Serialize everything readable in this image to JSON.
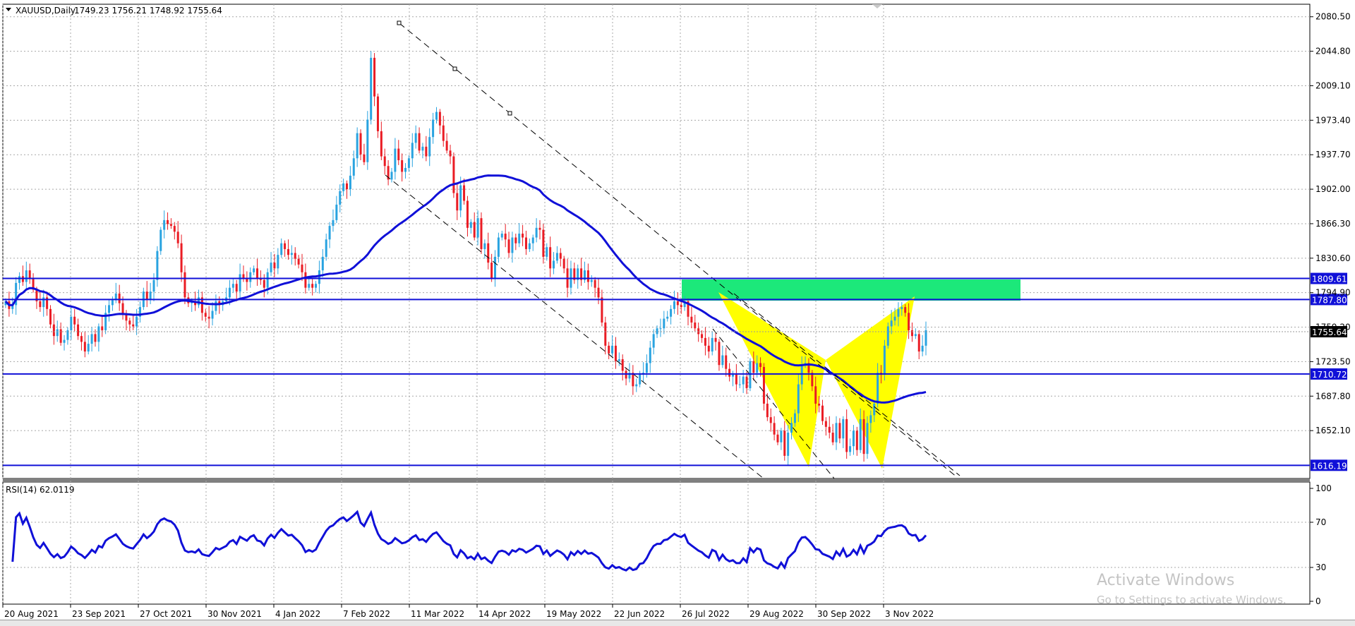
{
  "header": {
    "symbol": "XAUUSD,Daily",
    "ohlc": "1749.23 1756.21 1748.92 1755.64"
  },
  "watermark": {
    "line1": "Activate Windows",
    "line2": "Go to Settings to activate Windows."
  },
  "colors": {
    "bull": "#29a3e0",
    "bear": "#ea1c24",
    "ma": "#1010d8",
    "hline": "#1010d8",
    "zone": "#1ce87a",
    "pattern": "#ffff00"
  },
  "chart_data": [
    {
      "type": "candlestick",
      "title": "XAUUSD,Daily",
      "x_tick_labels": [
        "20 Aug 2021",
        "23 Sep 2021",
        "27 Oct 2021",
        "30 Nov 2021",
        "4 Jan 2022",
        "7 Feb 2022",
        "11 Mar 2022",
        "14 Apr 2022",
        "19 May 2022",
        "22 Jun 2022",
        "26 Jul 2022",
        "29 Aug 2022",
        "30 Sep 2022",
        "3 Nov 2022"
      ],
      "y_tick_labels": [
        "2080.50",
        "2044.80",
        "2009.10",
        "1973.40",
        "1937.70",
        "1902.00",
        "1866.30",
        "1830.60",
        "1794.90",
        "1759.20",
        "1723.50",
        "1687.80",
        "1652.10"
      ],
      "ylim": [
        1604,
        2092
      ],
      "last_price": "1755.64",
      "levels": [
        {
          "value": 1809.61,
          "label": "1809.61"
        },
        {
          "value": 1787.8,
          "label": "1787.80"
        },
        {
          "value": 1710.72,
          "label": "1710.72"
        },
        {
          "value": 1616.19,
          "label": "1616.19"
        }
      ],
      "closes": [
        1786,
        1778,
        1782,
        1805,
        1812,
        1806,
        1818,
        1810,
        1798,
        1786,
        1780,
        1790,
        1778,
        1762,
        1750,
        1757,
        1743,
        1746,
        1756,
        1770,
        1762,
        1750,
        1744,
        1734,
        1742,
        1752,
        1744,
        1760,
        1756,
        1774,
        1782,
        1787,
        1794,
        1784,
        1772,
        1766,
        1762,
        1760,
        1770,
        1780,
        1796,
        1788,
        1796,
        1808,
        1838,
        1860,
        1870,
        1866,
        1864,
        1858,
        1846,
        1816,
        1790,
        1784,
        1786,
        1782,
        1790,
        1774,
        1770,
        1768,
        1776,
        1786,
        1782,
        1786,
        1790,
        1800,
        1804,
        1796,
        1814,
        1810,
        1806,
        1816,
        1820,
        1810,
        1808,
        1800,
        1816,
        1826,
        1820,
        1834,
        1846,
        1840,
        1834,
        1836,
        1830,
        1824,
        1816,
        1800,
        1804,
        1800,
        1804,
        1818,
        1832,
        1850,
        1864,
        1870,
        1886,
        1900,
        1908,
        1902,
        1916,
        1934,
        1960,
        1938,
        1930,
        1974,
        2038,
        1998,
        1962,
        1936,
        1926,
        1912,
        1920,
        1944,
        1932,
        1920,
        1924,
        1934,
        1950,
        1960,
        1942,
        1946,
        1936,
        1956,
        1974,
        1982,
        1968,
        1952,
        1942,
        1936,
        1898,
        1880,
        1906,
        1890,
        1862,
        1868,
        1852,
        1872,
        1840,
        1846,
        1826,
        1810,
        1832,
        1852,
        1856,
        1850,
        1836,
        1852,
        1846,
        1856,
        1852,
        1840,
        1846,
        1852,
        1862,
        1860,
        1832,
        1842,
        1820,
        1828,
        1836,
        1830,
        1820,
        1800,
        1820,
        1808,
        1820,
        1808,
        1818,
        1806,
        1808,
        1800,
        1790,
        1764,
        1740,
        1732,
        1740,
        1724,
        1726,
        1714,
        1706,
        1712,
        1698,
        1700,
        1710,
        1712,
        1722,
        1738,
        1752,
        1758,
        1758,
        1768,
        1770,
        1778,
        1786,
        1782,
        1780,
        1786,
        1770,
        1764,
        1758,
        1752,
        1748,
        1740,
        1734,
        1748,
        1744,
        1720,
        1730,
        1716,
        1708,
        1710,
        1700,
        1700,
        1708,
        1696,
        1724,
        1712,
        1722,
        1718,
        1680,
        1666,
        1660,
        1648,
        1640,
        1652,
        1626,
        1650,
        1660,
        1670,
        1700,
        1720,
        1722,
        1712,
        1698,
        1680,
        1678,
        1662,
        1656,
        1650,
        1640,
        1660,
        1644,
        1664,
        1630,
        1636,
        1652,
        1632,
        1664,
        1628,
        1660,
        1668,
        1680,
        1712,
        1710,
        1740,
        1760,
        1766,
        1770,
        1778,
        1780,
        1774,
        1756,
        1750,
        1752,
        1734,
        1740,
        1756
      ]
    },
    {
      "type": "line",
      "title": "RSI(14) 62.0119",
      "ylim": [
        0,
        100
      ],
      "y_tick_labels": [
        "100",
        "70",
        "30",
        "0"
      ]
    }
  ]
}
